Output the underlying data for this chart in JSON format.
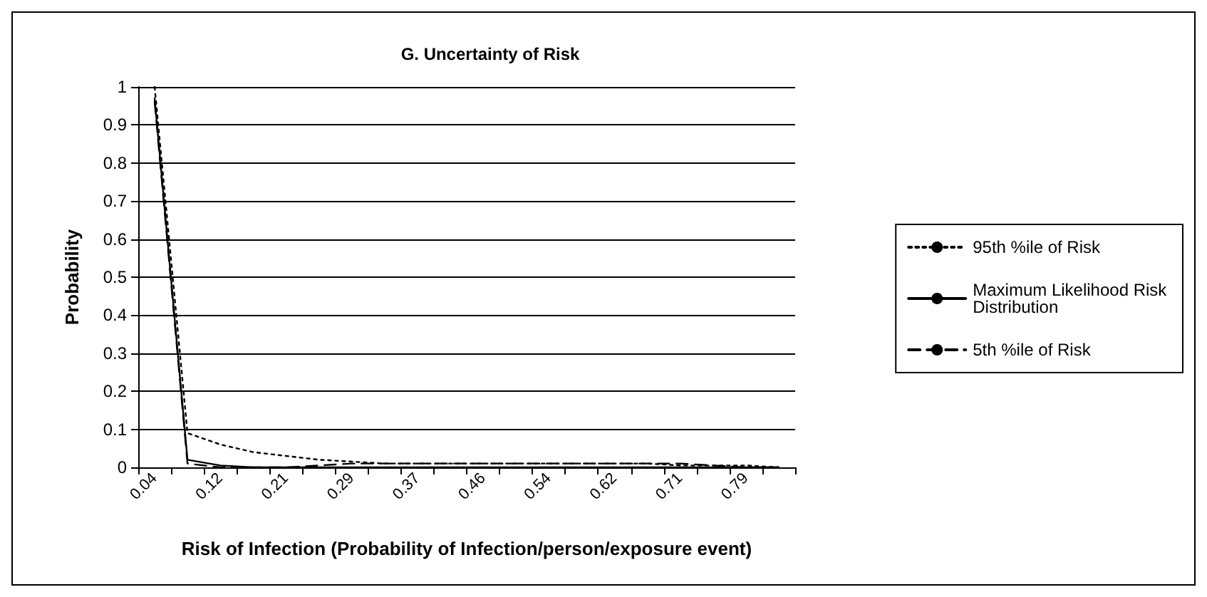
{
  "chart_data": {
    "type": "line",
    "title": "G. Uncertainty of Risk",
    "xlabel": "Risk of Infection (Probability of Infection/person/exposure event)",
    "ylabel": "Probability",
    "categories": [
      "0.04",
      null,
      "0.12",
      null,
      "0.21",
      null,
      "0.29",
      null,
      "0.37",
      null,
      "0.46",
      null,
      "0.54",
      null,
      "0.62",
      null,
      "0.71",
      null,
      "0.79",
      null
    ],
    "series": [
      {
        "name": "95th %ile of Risk",
        "color": "#000000",
        "line_style": "dotted",
        "values": [
          1.0,
          0.09,
          0.06,
          0.04,
          0.03,
          0.02,
          0.015,
          0.01,
          0.01,
          0.01,
          0.01,
          0.01,
          0.01,
          0.01,
          0.01,
          0.01,
          0.005,
          0.005,
          0.005,
          0.0
        ]
      },
      {
        "name": "Maximum Likelihood Risk Distribution",
        "color": "#000000",
        "line_style": "solid",
        "values": [
          0.97,
          0.02,
          0.005,
          0.0,
          0.0,
          0.0,
          0.0,
          0.0,
          0.0,
          0.0,
          0.0,
          0.0,
          0.0,
          0.0,
          0.0,
          0.0,
          0.0,
          0.0,
          0.0,
          0.0
        ]
      },
      {
        "name": "5th %ile of Risk",
        "color": "#000000",
        "line_style": "dashed",
        "values": [
          0.96,
          0.01,
          0.0,
          0.0,
          0.0,
          0.005,
          0.01,
          0.01,
          0.01,
          0.01,
          0.01,
          0.01,
          0.01,
          0.01,
          0.01,
          0.01,
          0.01,
          0.005,
          0.0,
          0.0
        ]
      }
    ],
    "ylim": [
      0,
      1
    ],
    "yticks": [
      0,
      0.1,
      0.2,
      0.3,
      0.4,
      0.5,
      0.6,
      0.7,
      0.8,
      0.9,
      1
    ],
    "grid": "y",
    "legend": "right",
    "marker": "none"
  }
}
